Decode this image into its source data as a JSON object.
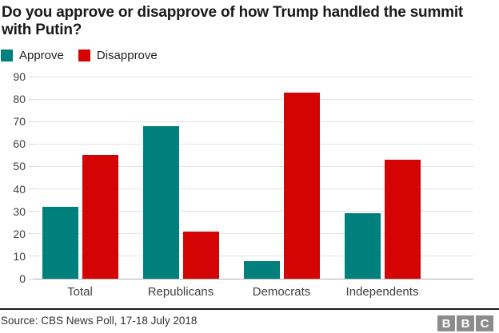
{
  "header": {
    "title": "Do you approve or disapprove of how Trump handled the summit with Putin?"
  },
  "chart_data": {
    "type": "bar",
    "title": "Do you approve or disapprove of how Trump handled the summit with Putin?",
    "categories": [
      "Total",
      "Republicans",
      "Democrats",
      "Independents"
    ],
    "series": [
      {
        "name": "Approve",
        "color": "#00807d",
        "values": [
          32,
          68,
          8,
          29
        ]
      },
      {
        "name": "Disapprove",
        "color": "#d40404",
        "values": [
          55,
          21,
          83,
          53
        ]
      }
    ],
    "xlabel": "",
    "ylabel": "",
    "ylim": [
      0,
      90
    ],
    "yticks": [
      0,
      10,
      20,
      30,
      40,
      50,
      60,
      70,
      80,
      90
    ],
    "grid": true,
    "legend_position": "top-left"
  },
  "footer": {
    "source": "Source: CBS News Poll, 17-18 July 2018",
    "logo_letters": [
      "B",
      "B",
      "C"
    ]
  }
}
